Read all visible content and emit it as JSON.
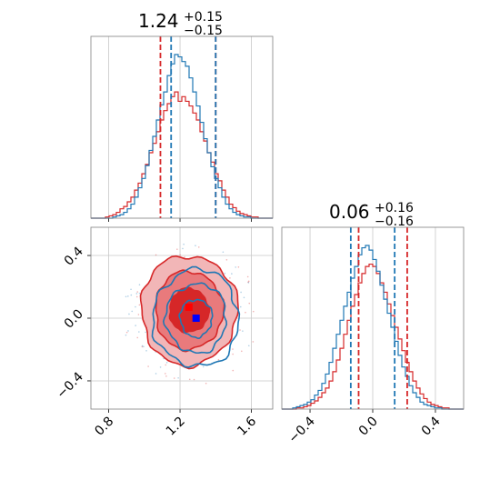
{
  "chart_data": {
    "type": "corner",
    "colors": {
      "series_a": "#1f77b4",
      "series_b": "#d62728",
      "marker_a": "#0000ff",
      "marker_b": "#ff0000"
    },
    "series": [
      {
        "name": "",
        "color": "#1f77b4"
      },
      {
        "name": "",
        "color": "#d62728"
      }
    ],
    "parameters": [
      {
        "title_value": "1.24",
        "title_plus": "+0.15",
        "title_minus": "−0.15",
        "range": [
          0.7,
          1.72
        ],
        "ticks": [
          0.8,
          1.2,
          1.6
        ],
        "tick_labels": [
          "0.8",
          "1.2",
          "1.6"
        ]
      },
      {
        "title_value": "0.06",
        "title_plus": "+0.16",
        "title_minus": "−0.16",
        "range": [
          -0.58,
          0.58
        ],
        "ticks": [
          -0.4,
          0.0,
          0.4
        ],
        "tick_labels": [
          "−0.4",
          "0.0",
          "0.4"
        ]
      }
    ],
    "quantile_lines": {
      "param1": {
        "series_a": [
          1.15,
          1.4
        ],
        "series_b": [
          1.09,
          1.4
        ]
      },
      "param2": {
        "series_a": [
          -0.14,
          0.14
        ],
        "series_b": [
          -0.09,
          0.22
        ]
      }
    },
    "hist_1": {
      "bin_edges_range": [
        0.7,
        1.72
      ],
      "bins": 50,
      "series_a": [
        0,
        0,
        0,
        0,
        0,
        0,
        1,
        2,
        3,
        5,
        8,
        12,
        18,
        26,
        34,
        45,
        58,
        70,
        84,
        97,
        108,
        122,
        132,
        140,
        138,
        134,
        130,
        120,
        108,
        96,
        82,
        68,
        56,
        44,
        34,
        26,
        18,
        12,
        8,
        5,
        3,
        2,
        1,
        1,
        0,
        0,
        0,
        0,
        0,
        0
      ],
      "series_b": [
        0,
        0,
        0,
        0,
        1,
        2,
        3,
        5,
        8,
        10,
        14,
        18,
        24,
        30,
        38,
        46,
        56,
        64,
        74,
        84,
        92,
        98,
        104,
        108,
        100,
        104,
        100,
        96,
        90,
        84,
        74,
        66,
        56,
        48,
        38,
        32,
        24,
        18,
        12,
        9,
        6,
        4,
        3,
        2,
        1,
        1,
        0,
        0,
        0,
        0
      ]
    },
    "hist_2": {
      "bin_edges_range": [
        -0.58,
        0.58
      ],
      "bins": 50,
      "series_a": [
        0,
        0,
        0,
        1,
        2,
        3,
        4,
        6,
        8,
        12,
        16,
        22,
        30,
        40,
        52,
        64,
        76,
        88,
        100,
        112,
        122,
        132,
        138,
        140,
        136,
        128,
        118,
        106,
        94,
        82,
        70,
        58,
        46,
        36,
        28,
        20,
        14,
        10,
        6,
        4,
        3,
        2,
        1,
        1,
        0,
        0,
        0,
        0,
        0,
        0
      ],
      "series_b": [
        0,
        0,
        0,
        0,
        1,
        1,
        2,
        3,
        5,
        7,
        10,
        14,
        18,
        24,
        32,
        42,
        52,
        64,
        76,
        88,
        98,
        108,
        116,
        122,
        124,
        122,
        116,
        108,
        100,
        90,
        80,
        70,
        60,
        50,
        40,
        32,
        24,
        18,
        13,
        9,
        6,
        4,
        3,
        2,
        1,
        1,
        0,
        0,
        0,
        0
      ]
    },
    "joint": {
      "series_a": {
        "center": [
          1.29,
          0.0
        ],
        "contours_radius": [
          [
            0.09,
            0.12
          ],
          [
            0.17,
            0.22
          ],
          [
            0.24,
            0.31
          ]
        ]
      },
      "series_b": {
        "center": [
          1.25,
          0.05
        ],
        "contours_radius": [
          [
            0.11,
            0.14
          ],
          [
            0.19,
            0.25
          ],
          [
            0.27,
            0.35
          ]
        ]
      },
      "markers": [
        {
          "series": "series_b",
          "x": 1.25,
          "y": 0.07
        },
        {
          "series": "series_a",
          "x": 1.29,
          "y": 0.0
        }
      ]
    },
    "grid": true
  }
}
